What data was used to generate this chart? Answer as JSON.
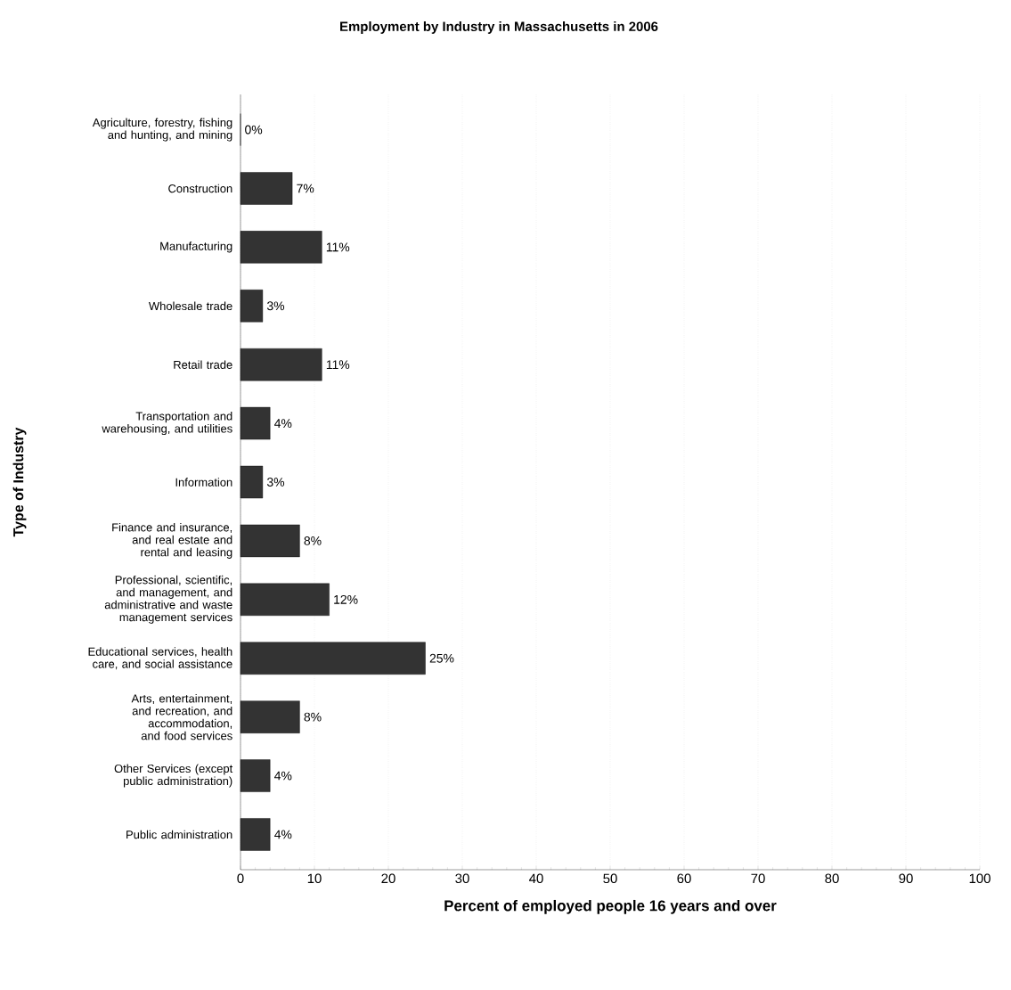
{
  "chart_data": {
    "type": "bar",
    "orientation": "horizontal",
    "title": "Employment by Industry in Massachusetts in 2006",
    "xlabel": "Percent of employed people 16 years and over",
    "ylabel": "Type of Industry",
    "categories": [
      "Agriculture, forestry, fishing and hunting, and mining",
      "Construction",
      "Manufacturing",
      "Wholesale trade",
      "Retail trade",
      "Transportation and warehousing, and utilities",
      "Information",
      "Finance and insurance, and real estate and rental and leasing",
      "Professional, scientific, and management, and administrative and waste management services",
      "Educational services, health care, and social assistance",
      "Arts, entertainment, and recreation, and accommodation, and food services",
      "Other Services (except public administration)",
      "Public administration"
    ],
    "values": [
      0,
      7,
      11,
      3,
      11,
      4,
      3,
      8,
      12,
      25,
      8,
      4,
      4
    ],
    "value_labels": [
      "0%",
      "7%",
      "11%",
      "3%",
      "11%",
      "4%",
      "3%",
      "8%",
      "12%",
      "25%",
      "8%",
      "4%",
      "4%"
    ],
    "color": "#333333",
    "xlim": [
      0,
      100
    ],
    "xticks": [
      0,
      10,
      20,
      30,
      40,
      50,
      60,
      70,
      80,
      90,
      100
    ],
    "grid": "x"
  }
}
